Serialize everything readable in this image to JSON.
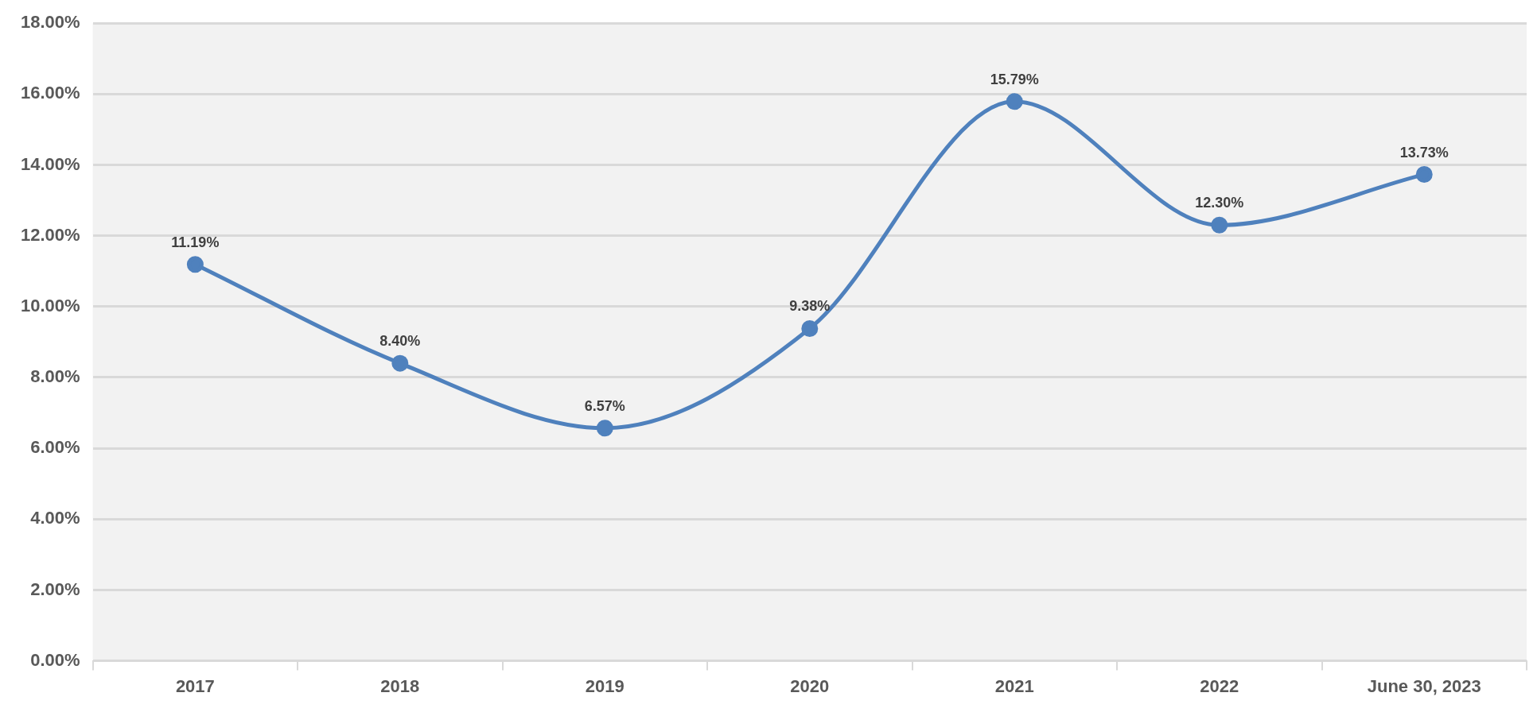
{
  "chart_data": {
    "type": "line",
    "categories": [
      "2017",
      "2018",
      "2019",
      "2020",
      "2021",
      "2022",
      "June 30, 2023"
    ],
    "values": [
      11.19,
      8.4,
      6.57,
      9.38,
      15.79,
      12.3,
      13.73
    ],
    "value_labels": [
      "11.19%",
      "8.40%",
      "6.57%",
      "9.38%",
      "15.79%",
      "12.30%",
      "13.73%"
    ],
    "color": "#4f81bd",
    "marker": "circle",
    "grid": "y",
    "ylim": [
      0,
      18
    ],
    "yticks": [
      {
        "value": 0,
        "label": "0.00%"
      },
      {
        "value": 2,
        "label": "2.00%"
      },
      {
        "value": 4,
        "label": "4.00%"
      },
      {
        "value": 6,
        "label": "6.00%"
      },
      {
        "value": 8,
        "label": "8.00%"
      },
      {
        "value": 10,
        "label": "10.00%"
      },
      {
        "value": 12,
        "label": "12.00%"
      },
      {
        "value": 14,
        "label": "14.00%"
      },
      {
        "value": 16,
        "label": "16.00%"
      },
      {
        "value": 18,
        "label": "18.00%"
      }
    ]
  }
}
